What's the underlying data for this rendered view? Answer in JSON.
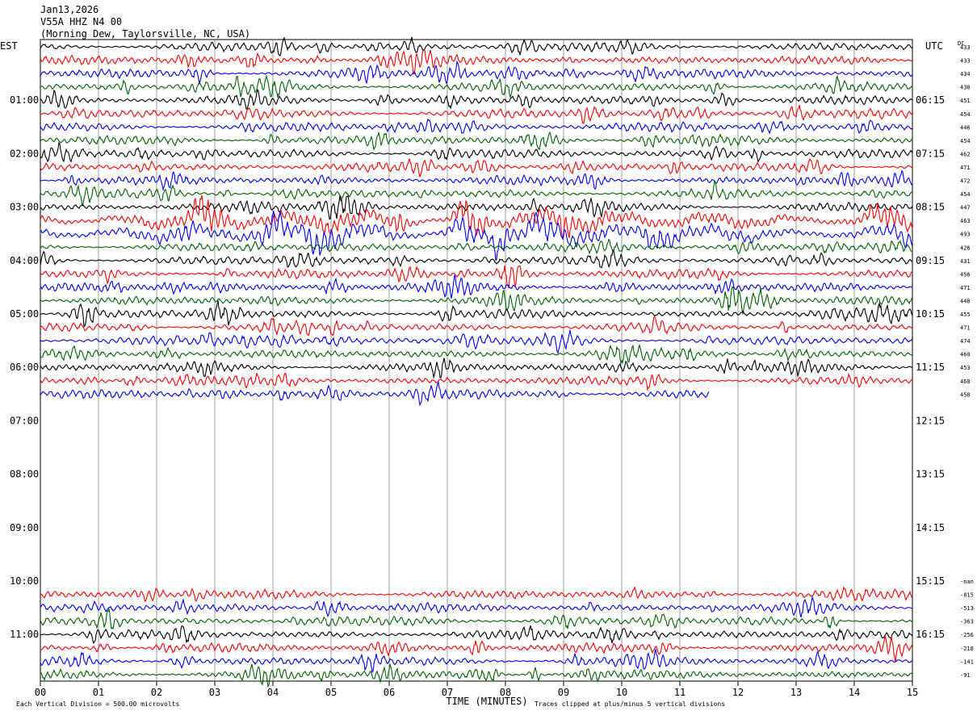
{
  "header": {
    "date": "Jan13,2026",
    "station": "V55A HHZ N4 00",
    "location": "(Morning Dew, Taylorsville, NC, USA)"
  },
  "axis_left_label": "EST",
  "axis_right_label": "UTC",
  "dc_label": "DC",
  "est_hour_labels": [
    "01:00",
    "02:00",
    "03:00",
    "04:00",
    "05:00",
    "06:00",
    "07:00",
    "08:00",
    "09:00",
    "10:00",
    "11:00"
  ],
  "utc_hour_labels": [
    "06:15",
    "07:15",
    "08:15",
    "09:15",
    "10:15",
    "11:15",
    "12:15",
    "13:15",
    "14:15",
    "15:15",
    "16:15"
  ],
  "x_tick_labels": [
    "00",
    "01",
    "02",
    "03",
    "04",
    "05",
    "06",
    "07",
    "08",
    "09",
    "10",
    "11",
    "12",
    "13",
    "14",
    "15"
  ],
  "x_axis_title": "TIME (MINUTES)",
  "footer": {
    "division_note": "Each Vertical Division =  500.00 microvolts",
    "clip_note": "Traces clipped at plus/minus 5 vertical divisions"
  },
  "colors": {
    "black": "#000000",
    "red": "#ff0000",
    "blue": "#0000ff",
    "green": "#006400",
    "grid": "#808080"
  },
  "chart_data": {
    "type": "line",
    "title": "",
    "xlabel": "TIME (MINUTES)",
    "xlim": [
      0,
      15
    ],
    "row_count": 48,
    "row_colors": [
      "black",
      "red",
      "blue",
      "green"
    ],
    "dc_offsets_top": [
      "433",
      "433",
      "434",
      "430",
      "451",
      "454",
      "446",
      "454",
      "462",
      "471",
      "472",
      "454",
      "447",
      "463",
      "493",
      "426",
      "431",
      "456",
      "471",
      "448",
      "455",
      "471",
      "474",
      "460",
      "453",
      "468",
      "458"
    ],
    "dc_offsets_bottom": [
      "-nan",
      "-815",
      "-513",
      "-363",
      "-256",
      "-218",
      "-141",
      "-91"
    ],
    "traces_top_rows": 27,
    "last_top_trace_end_minute": 11.5,
    "traces_bottom_start_row": 41,
    "traces_bottom_rows": 7,
    "high_amplitude_rows": [
      13,
      14
    ],
    "clip_divisions": 5,
    "division_microvolts": 500.0
  }
}
